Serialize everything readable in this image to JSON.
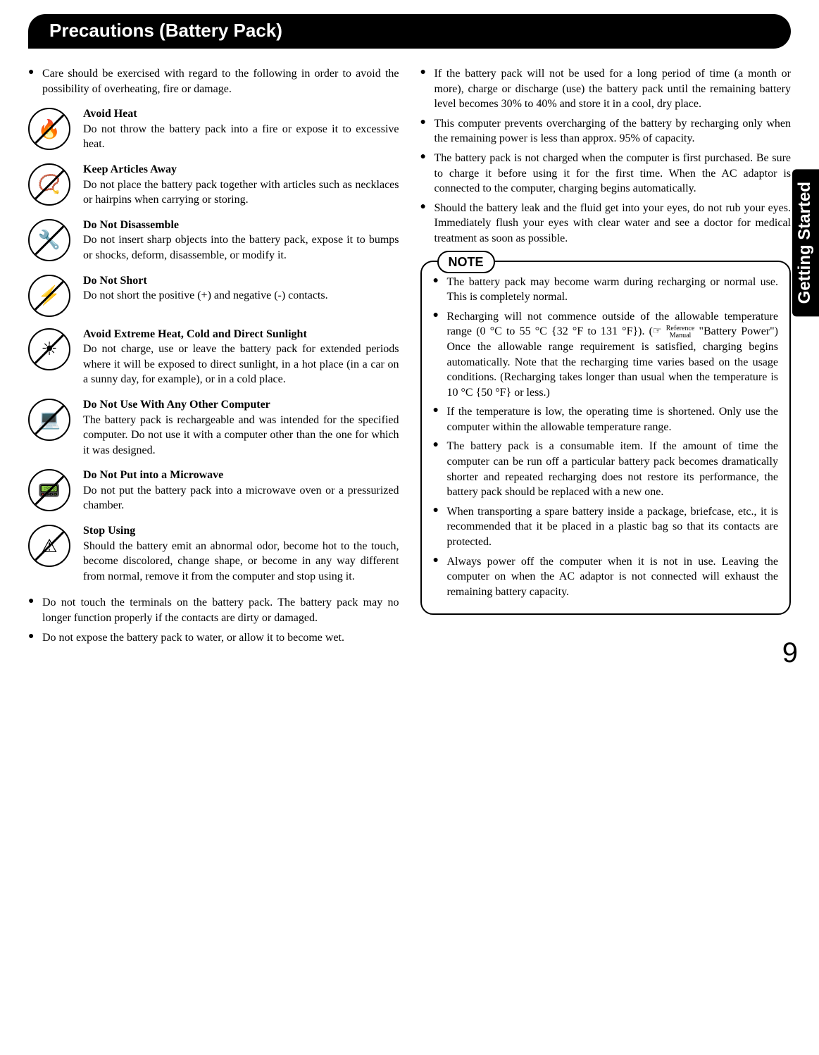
{
  "header": {
    "title": "Precautions (Battery Pack)"
  },
  "side_tab": "Getting Started",
  "page_number": "9",
  "left": {
    "intro": "Care should be exercised with regard to the following in order to avoid the possibility of overheating, fire or damage.",
    "blocks": [
      {
        "glyph": "🔥",
        "title": "Avoid Heat",
        "body": "Do not throw the battery pack into a fire or expose it to excessive heat."
      },
      {
        "glyph": "📿",
        "title": "Keep Articles Away",
        "body": "Do not place the battery pack together with articles such as necklaces or hairpins when carrying or storing."
      },
      {
        "glyph": "🔧",
        "title": "Do Not Disassemble",
        "body": "Do not insert sharp objects into the battery pack, expose it to bumps or shocks, deform, disassemble, or modify it."
      },
      {
        "glyph": "⚡",
        "title": "Do Not Short",
        "body": "Do not short the positive (+) and negative (-) contacts."
      },
      {
        "glyph": "☀",
        "title": "Avoid Extreme Heat, Cold and Direct Sunlight",
        "body": "Do not charge, use or leave the battery pack for extended periods where it will be exposed to direct sunlight, in a hot place (in a car on a sunny day, for example), or in a cold place."
      },
      {
        "glyph": "💻",
        "title": "Do Not Use With Any Other Computer",
        "body": "The battery pack is rechargeable and was intended for the specified computer.  Do not use it with a computer other than the one for which it was designed."
      },
      {
        "glyph": "📟",
        "title": "Do Not Put into a Microwave",
        "body": "Do not put the battery pack into a microwave oven or a pressurized chamber."
      },
      {
        "glyph": "⚠",
        "title": "Stop Using",
        "body": "Should the battery emit an abnormal odor, become hot to the touch, become discolored, change shape, or become in any way different from normal, remove it from the computer and stop using it."
      }
    ],
    "tail": [
      "Do not touch the terminals on the battery pack.  The battery pack may no longer function properly if the contacts are dirty or damaged.",
      "Do not expose the battery pack to water, or allow it to become wet."
    ]
  },
  "right": {
    "items": [
      "If the battery pack will not be used for a long period of time (a month or more), charge or discharge (use) the battery pack until the remaining battery level becomes 30% to 40% and store it in a cool, dry place.",
      "This computer prevents overcharging of the battery by recharging only when the remaining power is less than approx. 95% of capacity.",
      "The battery pack is not charged when the computer is first purchased.  Be sure to charge it before using it for the first time.  When the AC adaptor is connected to the computer, charging begins automatically.",
      "Should the battery leak and the fluid get into your eyes, do not rub your eyes.  Immediately flush your eyes with clear water and see a doctor for medical treatment as soon as possible."
    ],
    "note_label": "NOTE",
    "ref_hand": "☞",
    "ref_text_top": "Reference",
    "ref_text_bot": "Manual",
    "notes": [
      "The battery pack may become warm during recharging or normal use.  This is completely normal.",
      "Recharging will not commence outside of the allowable temperature range (0 °C to 55 °C {32 °F to 131 °F}). ( ☞ Reference Manual  \"Battery Power\")  Once the allowable range requirement is satisfied, charging begins automatically.  Note that the recharging time varies based on the usage conditions. (Recharging takes longer than usual when the temperature is 10 °C {50 °F} or less.)",
      "If the temperature is low, the operating time is shortened.  Only use the computer within the allowable temperature range.",
      "The battery pack is a consumable item.  If the amount of time the computer can be run off a particular battery pack becomes dramatically shorter and repeated recharging does not restore its performance, the battery pack should be replaced with a new one.",
      "When transporting a spare battery inside a package, briefcase, etc., it is recommended that it be placed in a plastic bag so that its contacts are protected.",
      "Always power off the computer when it is not in use. Leaving the computer on when the AC adaptor is not connected will exhaust the remaining battery capacity."
    ]
  }
}
